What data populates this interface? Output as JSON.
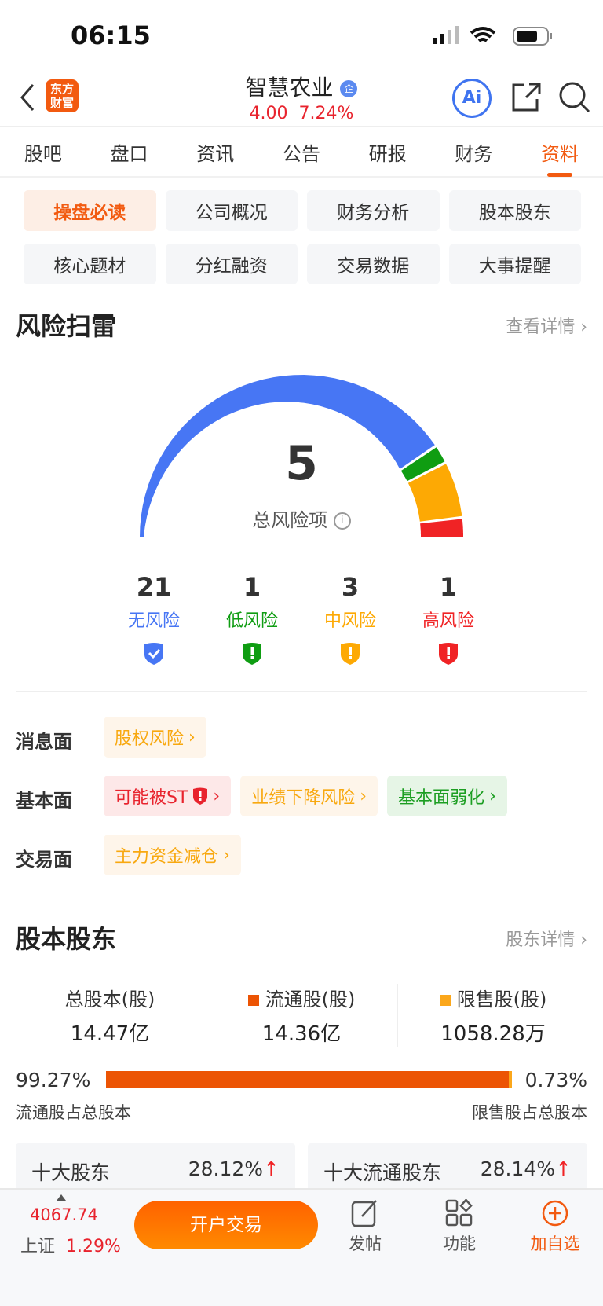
{
  "status": {
    "time": "06:15"
  },
  "header": {
    "title": "智慧农业",
    "badge": "企",
    "price": "4.00",
    "change": "7.24%",
    "logo": "东方财富"
  },
  "tabs": [
    "股吧",
    "盘口",
    "资讯",
    "公告",
    "研报",
    "财务",
    "资料"
  ],
  "active_tab": "资料",
  "grid": [
    "操盘必读",
    "公司概况",
    "财务分析",
    "股本股东",
    "核心题材",
    "分红融资",
    "交易数据",
    "大事提醒"
  ],
  "risk": {
    "title": "风险扫雷",
    "link": "查看详情",
    "total": "5",
    "total_label": "总风险项",
    "stats": [
      {
        "count": "21",
        "label": "无风险",
        "color": "#4776f4",
        "icon": "shield-check"
      },
      {
        "count": "1",
        "label": "低风险",
        "color": "#0f9d12",
        "icon": "shield-exclamation"
      },
      {
        "count": "3",
        "label": "中风险",
        "color": "#fda904",
        "icon": "shield-exclamation"
      },
      {
        "count": "1",
        "label": "高风险",
        "color": "#f02325",
        "icon": "shield-exclamation"
      }
    ],
    "rows": [
      {
        "label": "消息面",
        "tags": [
          {
            "text": "股权风险",
            "level": "o"
          }
        ]
      },
      {
        "label": "基本面",
        "tags": [
          {
            "text": "可能被ST",
            "level": "r",
            "icon": true
          },
          {
            "text": "业绩下降风险",
            "level": "o"
          },
          {
            "text": "基本面弱化",
            "level": "g"
          }
        ]
      },
      {
        "label": "交易面",
        "tags": [
          {
            "text": "主力资金减仓",
            "level": "o"
          }
        ]
      }
    ]
  },
  "shares": {
    "title": "股本股东",
    "link": "股东详情",
    "items": [
      {
        "label": "总股本(股)",
        "value": "14.47亿"
      },
      {
        "label": "流通股(股)",
        "value": "14.36亿",
        "color": "#ec5404"
      },
      {
        "label": "限售股(股)",
        "value": "1058.28万",
        "color": "#fba71b"
      }
    ],
    "float_pct": "99.27%",
    "float_label": "流通股占总股本",
    "restricted_pct": "0.73%",
    "restricted_label": "限售股占总股本",
    "float_fraction": 0.9927,
    "cards": [
      {
        "title": "十大股东",
        "value": "28.12%"
      },
      {
        "title": "十大流通股东",
        "value": "28.14%"
      }
    ]
  },
  "nav": {
    "index_value": "4067.74",
    "index_name": "上证",
    "index_change": "1.29%",
    "trade": "开户交易",
    "post": "发帖",
    "func": "功能",
    "add": "加自选"
  }
}
